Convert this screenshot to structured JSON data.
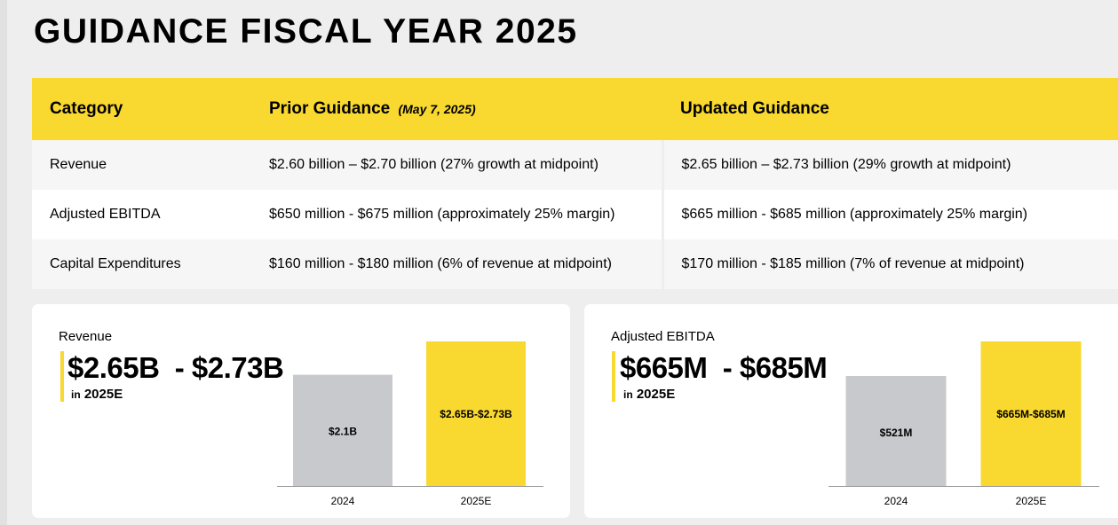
{
  "title": "GUIDANCE FISCAL YEAR 2025",
  "table": {
    "headers": {
      "category": "Category",
      "prior": "Prior Guidance",
      "prior_note": "(May 7, 2025)",
      "updated": "Updated Guidance"
    },
    "rows": [
      {
        "category": "Revenue",
        "prior": "$2.60 billion – $2.70 billion (27% growth at midpoint)",
        "updated": "$2.65 billion – $2.73 billion (29% growth at midpoint)"
      },
      {
        "category": "Adjusted EBITDA",
        "prior": "$650 million - $675 million (approximately 25% margin)",
        "updated": "$665 million - $685 million (approximately 25% margin)"
      },
      {
        "category": "Capital Expenditures",
        "prior": "$160 million - $180 million (6% of revenue at midpoint)",
        "updated": "$170 million - $185 million (7% of revenue at midpoint)"
      }
    ]
  },
  "revenue_card": {
    "label": "Revenue",
    "big_value": "$2.65B  - $2.73B",
    "sub_prefix": "in",
    "sub_year": "2025E"
  },
  "ebitda_card": {
    "label": "Adjusted EBITDA",
    "big_value": "$665M  - $685M",
    "sub_prefix": "in",
    "sub_year": "2025E"
  },
  "colors": {
    "accent": "#f9d82f",
    "bar_prior": "#c8c9cc",
    "axis": "#999999"
  },
  "chart_data": [
    {
      "type": "bar",
      "title": "Revenue",
      "categories": [
        "2024",
        "2025E"
      ],
      "values": [
        2.1,
        2.73
      ],
      "data_labels": [
        "$2.1B",
        "$2.65B-$2.73B"
      ],
      "ylabel": "",
      "xlabel": "",
      "ylim": [
        0,
        2.73
      ]
    },
    {
      "type": "bar",
      "title": "Adjusted EBITDA",
      "categories": [
        "2024",
        "2025E"
      ],
      "values": [
        521,
        685
      ],
      "data_labels": [
        "$521M",
        "$665M-$685M"
      ],
      "ylabel": "",
      "xlabel": "",
      "ylim": [
        0,
        685
      ]
    }
  ]
}
